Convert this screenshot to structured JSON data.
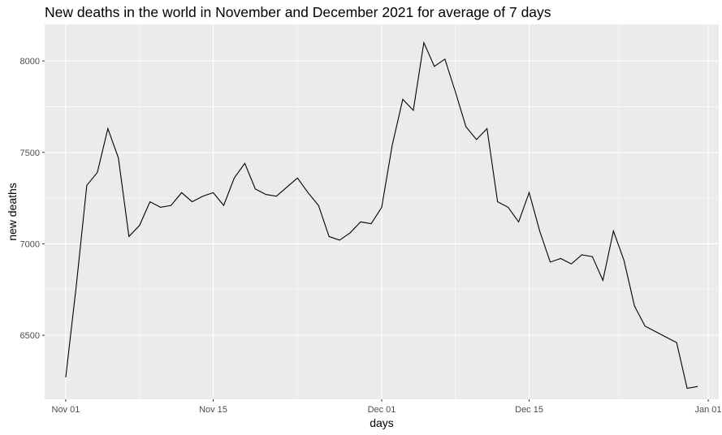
{
  "chart_data": {
    "type": "line",
    "title": "New deaths in the world in November and December 2021 for average of 7 days",
    "xlabel": "days",
    "ylabel": "new deaths",
    "x_ticks": [
      "Nov 01",
      "Nov 15",
      "Dec 01",
      "Dec 15",
      "Jan 01"
    ],
    "y_ticks": [
      6500,
      7000,
      7500,
      8000
    ],
    "xlim": [
      "2021-10-30",
      "2022-01-02"
    ],
    "ylim": [
      6150,
      8200
    ],
    "grid": true,
    "background": "#ebebeb",
    "grid_color": "#ffffff",
    "line_color": "#000000",
    "series": [
      {
        "x": [
          "2021-11-01",
          "2021-11-02",
          "2021-11-03",
          "2021-11-04",
          "2021-11-05",
          "2021-11-06",
          "2021-11-07",
          "2021-11-08",
          "2021-11-09",
          "2021-11-10",
          "2021-11-11",
          "2021-11-12",
          "2021-11-13",
          "2021-11-14",
          "2021-11-15",
          "2021-11-16",
          "2021-11-17",
          "2021-11-18",
          "2021-11-19",
          "2021-11-20",
          "2021-11-21",
          "2021-11-22",
          "2021-11-23",
          "2021-11-24",
          "2021-11-25",
          "2021-11-26",
          "2021-11-27",
          "2021-11-28",
          "2021-11-29",
          "2021-11-30",
          "2021-12-01",
          "2021-12-02",
          "2021-12-03",
          "2021-12-04",
          "2021-12-05",
          "2021-12-06",
          "2021-12-07",
          "2021-12-08",
          "2021-12-09",
          "2021-12-10",
          "2021-12-11",
          "2021-12-12",
          "2021-12-13",
          "2021-12-14",
          "2021-12-15",
          "2021-12-16",
          "2021-12-17",
          "2021-12-18",
          "2021-12-19",
          "2021-12-20",
          "2021-12-21",
          "2021-12-22",
          "2021-12-23",
          "2021-12-24",
          "2021-12-25",
          "2021-12-26",
          "2021-12-27",
          "2021-12-28",
          "2021-12-29",
          "2021-12-30",
          "2021-12-31"
        ],
        "values": [
          6270,
          6770,
          7320,
          7390,
          7630,
          7470,
          7040,
          7100,
          7230,
          7200,
          7210,
          7280,
          7230,
          7260,
          7280,
          7210,
          7360,
          7440,
          7300,
          7270,
          7260,
          7310,
          7360,
          7280,
          7210,
          7040,
          7020,
          7060,
          7120,
          7110,
          7200,
          7540,
          7790,
          7730,
          8100,
          7970,
          8010,
          7830,
          7640,
          7570,
          7630,
          7230,
          7200,
          7120,
          7280,
          7070,
          6900,
          6920,
          6890,
          6940,
          6930,
          6800,
          7070,
          6910,
          6660,
          6550,
          6520,
          6490,
          6460,
          6210,
          6220
        ]
      }
    ]
  }
}
